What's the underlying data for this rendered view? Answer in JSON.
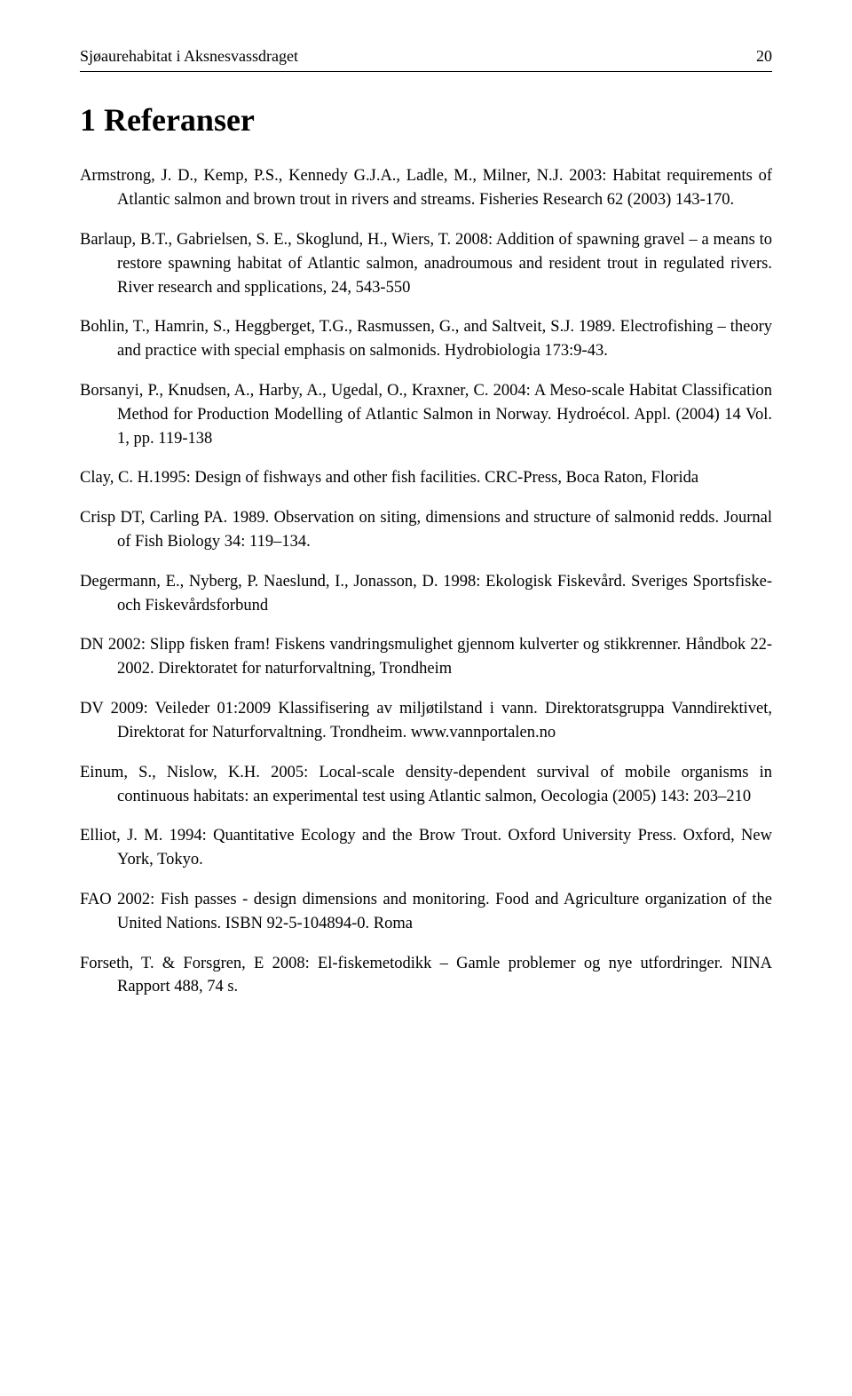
{
  "header": {
    "title": "Sjøaurehabitat i Aksnesvassdraget",
    "page": "20"
  },
  "section": {
    "number": "1",
    "title": "Referanser"
  },
  "references": [
    "Armstrong, J. D., Kemp, P.S., Kennedy G.J.A., Ladle, M., Milner, N.J. 2003: Habitat requirements of Atlantic salmon and brown trout in rivers and streams. Fisheries Research 62 (2003) 143-170.",
    "Barlaup, B.T., Gabrielsen, S. E., Skoglund, H., Wiers, T. 2008: Addition of spawning gravel – a means to restore spawning habitat of Atlantic salmon, anadroumous and resident trout in regulated rivers. River research and spplications, 24, 543-550",
    "Bohlin, T., Hamrin, S., Heggberget, T.G., Rasmussen, G., and Saltveit, S.J. 1989. Electrofishing – theory and practice with special emphasis on salmonids. Hydrobiologia 173:9-43.",
    "Borsanyi, P., Knudsen, A., Harby, A., Ugedal, O., Kraxner, C. 2004: A Meso-scale Habitat Classification Method for Production Modelling of Atlantic Salmon in Norway. Hydroécol. Appl. (2004) 14 Vol. 1, pp. 119-138",
    "Clay, C. H.1995: Design of fishways and other fish facilities. CRC-Press, Boca Raton, Florida",
    "Crisp DT, Carling PA. 1989. Observation on siting, dimensions and structure of salmonid redds. Journal of Fish Biology 34: 119–134.",
    "Degermann, E., Nyberg, P. Naeslund, I., Jonasson, D. 1998: Ekologisk Fiskevård. Sveriges Sportsfiske- och Fiskevårdsforbund",
    "DN 2002: Slipp fisken fram! Fiskens vandringsmulighet gjennom kulverter og stikkrenner. Håndbok 22-2002. Direktoratet for naturforvaltning, Trondheim",
    "DV 2009: Veileder 01:2009 Klassifisering av miljøtilstand i vann. Direktoratsgruppa Vanndirektivet, Direktorat for Naturforvaltning. Trondheim. www.vannportalen.no",
    "Einum, S., Nislow, K.H. 2005: Local-scale density-dependent survival of mobile organisms in continuous habitats: an experimental test using Atlantic salmon, Oecologia (2005) 143: 203–210",
    "Elliot, J. M. 1994: Quantitative Ecology and the Brow Trout. Oxford University Press. Oxford, New York, Tokyo.",
    "FAO 2002: Fish passes - design dimensions and monitoring. Food and Agriculture organization of the United Nations. ISBN 92-5-104894-0. Roma",
    "Forseth, T. & Forsgren, E 2008: El-fiskemetodikk – Gamle problemer og nye utfordringer. NINA Rapport 488, 74 s."
  ]
}
